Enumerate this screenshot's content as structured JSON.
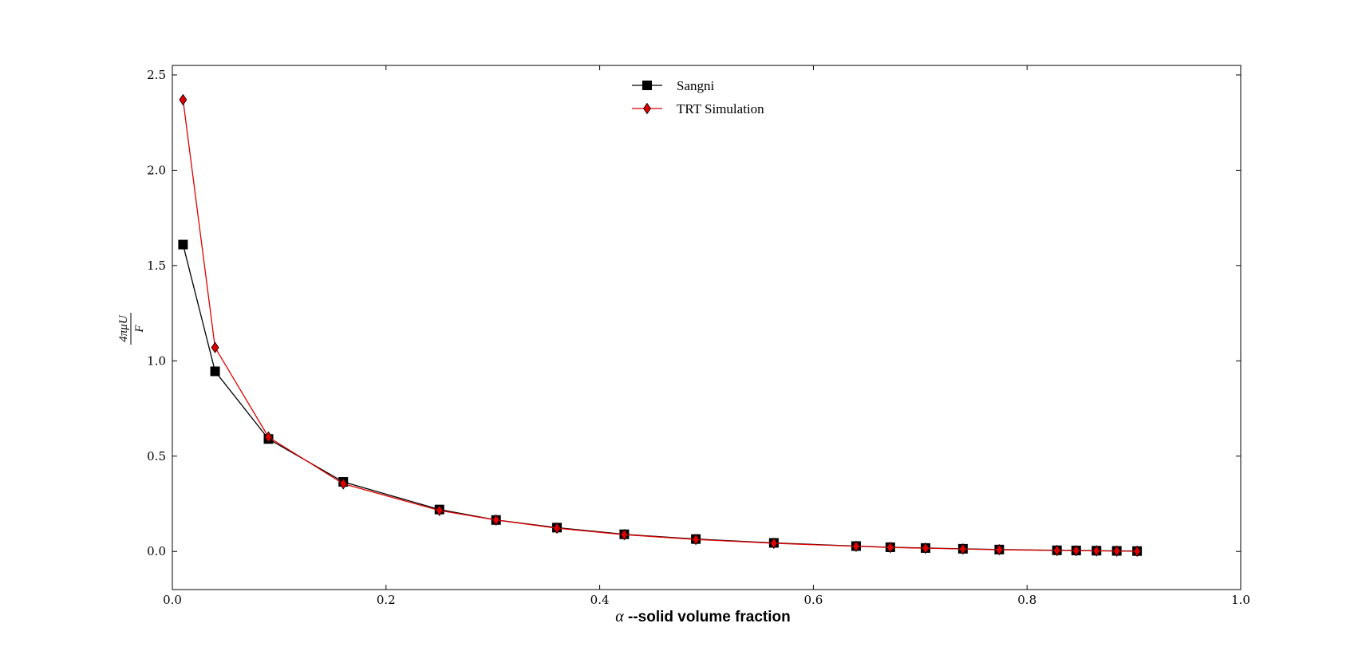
{
  "chart_data": {
    "type": "line",
    "title": "",
    "xlabel_symbol": "α",
    "xlabel_text": " --solid volume fraction",
    "ylabel_num": "4πμU",
    "ylabel_den": "F",
    "xlim": [
      0.0,
      1.0
    ],
    "ylim": [
      -0.2,
      2.55
    ],
    "xticks": [
      0.0,
      0.2,
      0.4,
      0.6,
      0.8,
      1.0
    ],
    "xtick_labels": [
      "0.0",
      "0.2",
      "0.4",
      "0.6",
      "0.8",
      "1.0"
    ],
    "yticks": [
      0.0,
      0.5,
      1.0,
      1.5,
      2.0,
      2.5
    ],
    "ytick_labels": [
      "0.0",
      "0.5",
      "1.0",
      "1.5",
      "2.0",
      "2.5"
    ],
    "grid": false,
    "legend_position": "top-center",
    "series": [
      {
        "name": "Sangni",
        "color": "#000000",
        "marker": "square",
        "x": [
          0.01,
          0.04,
          0.09,
          0.16,
          0.25,
          0.303,
          0.36,
          0.423,
          0.49,
          0.563,
          0.64,
          0.672,
          0.705,
          0.74,
          0.774,
          0.828,
          0.846,
          0.865,
          0.884,
          0.903
        ],
        "y": [
          1.61,
          0.945,
          0.59,
          0.365,
          0.22,
          0.165,
          0.125,
          0.09,
          0.065,
          0.045,
          0.028,
          0.022,
          0.018,
          0.014,
          0.01,
          0.006,
          0.005,
          0.004,
          0.003,
          0.002
        ]
      },
      {
        "name": "TRT Simulation",
        "color": "#dd0000",
        "marker": "diamond",
        "x": [
          0.01,
          0.04,
          0.09,
          0.16,
          0.25,
          0.303,
          0.36,
          0.423,
          0.49,
          0.563,
          0.64,
          0.672,
          0.705,
          0.74,
          0.774,
          0.828,
          0.846,
          0.865,
          0.884,
          0.903
        ],
        "y": [
          2.37,
          1.07,
          0.6,
          0.355,
          0.215,
          0.165,
          0.122,
          0.088,
          0.063,
          0.043,
          0.027,
          0.021,
          0.017,
          0.013,
          0.009,
          0.005,
          0.004,
          0.003,
          0.002,
          0.001
        ]
      }
    ]
  }
}
